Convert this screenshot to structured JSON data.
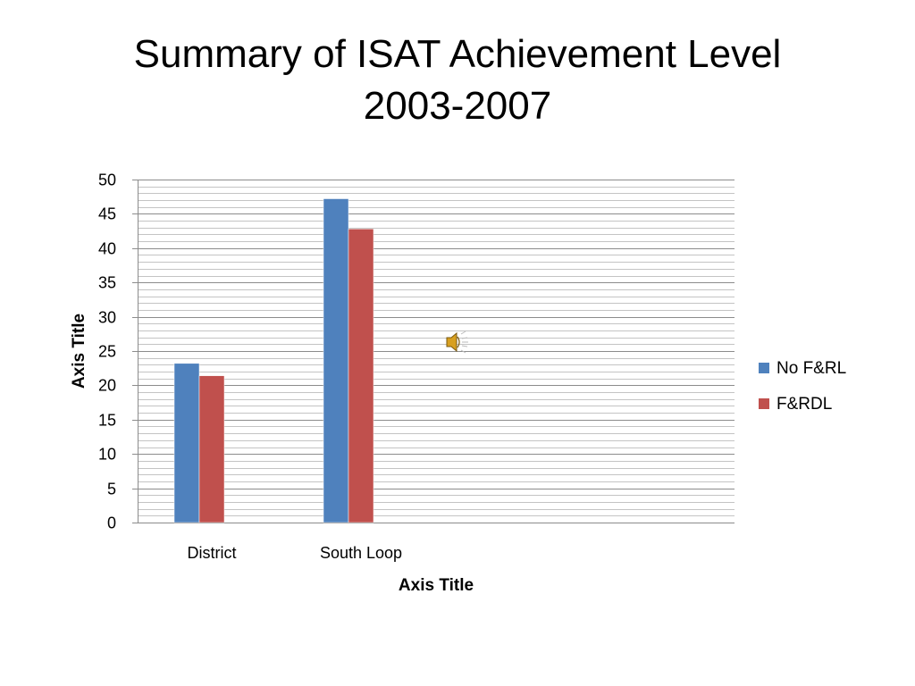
{
  "slide": {
    "title_line1": "Summary of ISAT Achievement Level",
    "title_line2": "2003-2007"
  },
  "chart_data": {
    "type": "bar",
    "categories": [
      "District",
      "South Loop"
    ],
    "series": [
      {
        "name": "No F&RL",
        "values": [
          23.2,
          47.2
        ],
        "color": "#4F81BD"
      },
      {
        "name": "F&RDL",
        "values": [
          21.4,
          42.8
        ],
        "color": "#C0504D"
      }
    ],
    "xlabel": "Axis Title",
    "ylabel": "Axis Title",
    "ylim": [
      0,
      50
    ],
    "y_ticks": [
      0,
      5,
      10,
      15,
      20,
      25,
      30,
      35,
      40,
      45,
      50
    ],
    "minor_step": 1,
    "grid": true,
    "legend_position": "right"
  },
  "icons": {
    "speaker": "speaker-icon"
  }
}
